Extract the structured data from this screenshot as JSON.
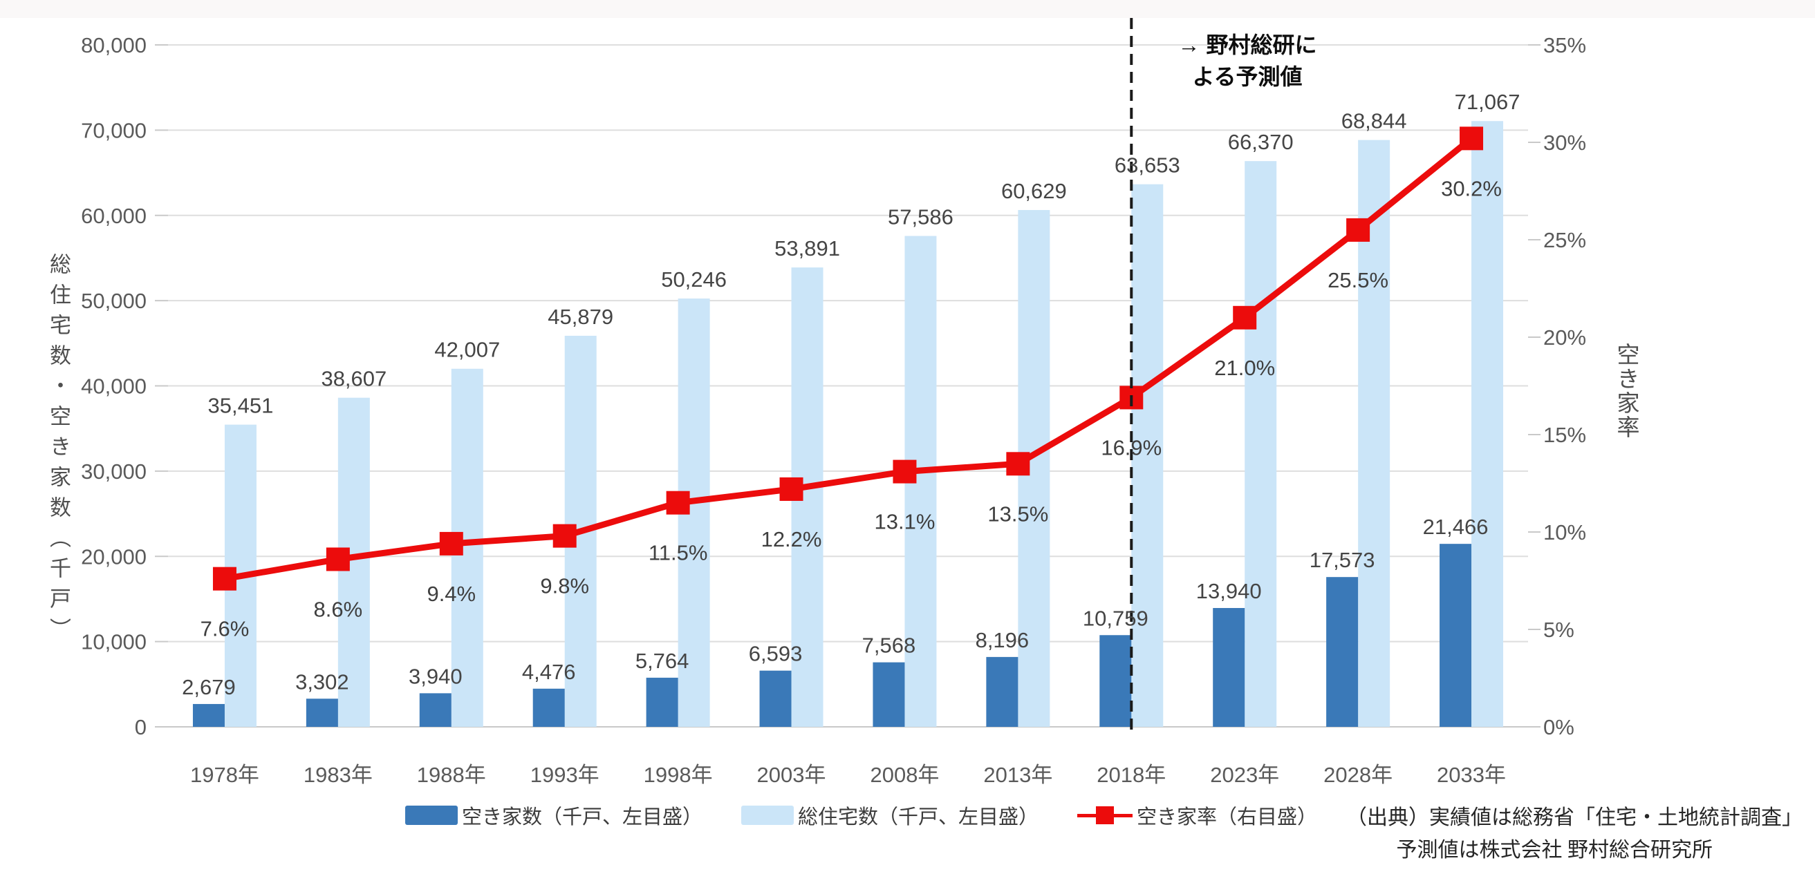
{
  "chart_data": {
    "type": "bar+line combo",
    "categories": [
      "1978年",
      "1983年",
      "1988年",
      "1993年",
      "1998年",
      "2003年",
      "2008年",
      "2013年",
      "2018年",
      "2023年",
      "2028年",
      "2033年"
    ],
    "series": [
      {
        "name": "空き家数（千戸、左目盛）",
        "type": "bar",
        "axis": "left",
        "color": "#3A79B8",
        "values": [
          2679,
          3302,
          3940,
          4476,
          5764,
          6593,
          7568,
          8196,
          10759,
          13940,
          17573,
          21466
        ],
        "labels": [
          "2,679",
          "3,302",
          "3,940",
          "4,476",
          "5,764",
          "6,593",
          "7,568",
          "8,196",
          "10,759",
          "13,940",
          "17,573",
          "21,466"
        ]
      },
      {
        "name": "総住宅数（千戸、左目盛）",
        "type": "bar",
        "axis": "left",
        "color": "#CBE5F8",
        "values": [
          35451,
          38607,
          42007,
          45879,
          50246,
          53891,
          57586,
          60629,
          63653,
          66370,
          68844,
          71067
        ],
        "labels": [
          "35,451",
          "38,607",
          "42,007",
          "45,879",
          "50,246",
          "53,891",
          "57,586",
          "60,629",
          "63,653",
          "66,370",
          "68,844",
          "71,067"
        ]
      },
      {
        "name": "空き家率（右目盛）",
        "type": "line",
        "axis": "right",
        "color": "#EC0C0C",
        "values": [
          7.6,
          8.6,
          9.4,
          9.8,
          11.5,
          12.2,
          13.1,
          13.5,
          16.9,
          21.0,
          25.5,
          30.2
        ],
        "labels": [
          "7.6%",
          "8.6%",
          "9.4%",
          "9.8%",
          "11.5%",
          "12.2%",
          "13.1%",
          "13.5%",
          "16.9%",
          "21.0%",
          "25.5%",
          "30.2%"
        ]
      }
    ],
    "left_axis": {
      "title": "総住宅数・空き家数（千戸）",
      "min": 0,
      "max": 80000,
      "step": 10000,
      "tick_labels": [
        "0",
        "10,000",
        "20,000",
        "30,000",
        "40,000",
        "50,000",
        "60,000",
        "70,000",
        "80,000"
      ]
    },
    "right_axis": {
      "title": "空き家率",
      "min": 0,
      "max": 35,
      "step": 5,
      "tick_labels": [
        "0%",
        "5%",
        "10%",
        "15%",
        "20%",
        "25%",
        "30%",
        "35%"
      ]
    },
    "annotation": {
      "line1": "→ 野村総研に",
      "line2": "よる予測値",
      "divider_category_index": 8
    },
    "source_lines": [
      "（出典）実績値は総務省「住宅・土地統計調査」",
      "予測値は株式会社 野村総合研究所"
    ],
    "grid": true,
    "legend_position": "bottom",
    "colors": {
      "gridline": "#dedede",
      "baseline": "#c9c9c9",
      "tick_text": "#5a5a5a",
      "data_label": "#454545",
      "divider": "#1a1a1a"
    }
  }
}
